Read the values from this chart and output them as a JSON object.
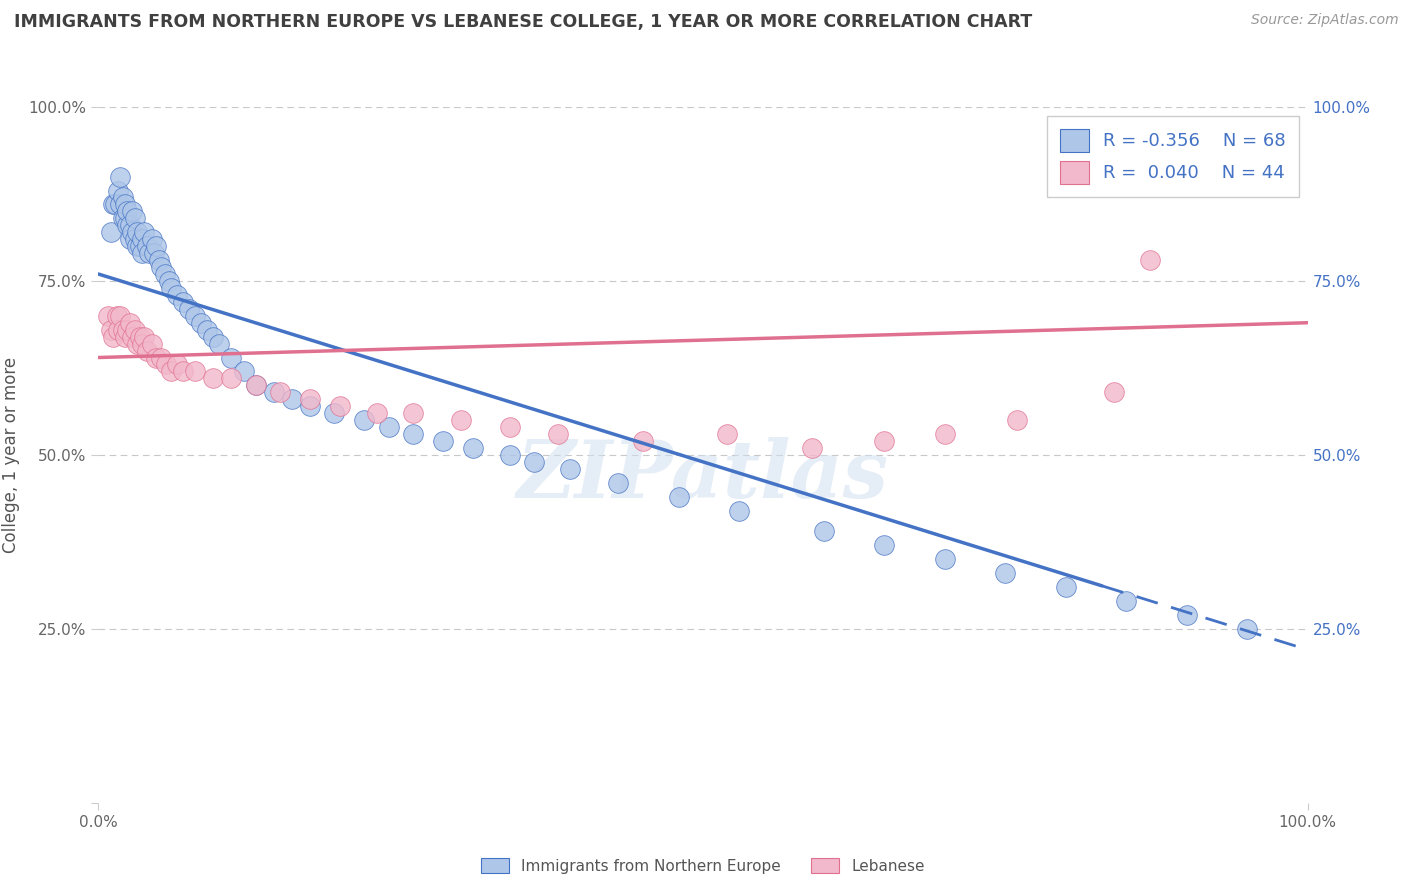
{
  "title": "IMMIGRANTS FROM NORTHERN EUROPE VS LEBANESE COLLEGE, 1 YEAR OR MORE CORRELATION CHART",
  "source_text": "Source: ZipAtlas.com",
  "ylabel": "College, 1 year or more",
  "watermark": "ZIPatlas",
  "legend": {
    "blue_R": -0.356,
    "blue_N": 68,
    "pink_R": 0.04,
    "pink_N": 44
  },
  "xlim": [
    0.0,
    1.0
  ],
  "ylim": [
    0.0,
    1.0
  ],
  "blue_color": "#aec6e8",
  "pink_color": "#f2b8cb",
  "blue_line_color": "#4472c4",
  "pink_line_color": "#e07090",
  "grid_color": "#c8c8c8",
  "background_color": "#ffffff",
  "title_color": "#404040",
  "right_axis_color": "#4472c4",
  "legend_label_blue": "Immigrants from Northern Europe",
  "legend_label_pink": "Lebanese",
  "blue_scatter_x": [
    0.01,
    0.012,
    0.014,
    0.016,
    0.018,
    0.018,
    0.02,
    0.02,
    0.022,
    0.022,
    0.024,
    0.024,
    0.026,
    0.026,
    0.028,
    0.028,
    0.03,
    0.03,
    0.032,
    0.032,
    0.034,
    0.036,
    0.036,
    0.038,
    0.04,
    0.042,
    0.044,
    0.046,
    0.048,
    0.05,
    0.052,
    0.055,
    0.058,
    0.06,
    0.065,
    0.07,
    0.075,
    0.08,
    0.085,
    0.09,
    0.095,
    0.1,
    0.11,
    0.12,
    0.13,
    0.145,
    0.16,
    0.175,
    0.195,
    0.22,
    0.24,
    0.26,
    0.285,
    0.31,
    0.34,
    0.36,
    0.39,
    0.43,
    0.48,
    0.53,
    0.6,
    0.65,
    0.7,
    0.75,
    0.8,
    0.85,
    0.9,
    0.95
  ],
  "blue_scatter_y": [
    0.82,
    0.86,
    0.86,
    0.88,
    0.86,
    0.9,
    0.84,
    0.87,
    0.84,
    0.86,
    0.83,
    0.85,
    0.83,
    0.81,
    0.82,
    0.85,
    0.81,
    0.84,
    0.8,
    0.82,
    0.8,
    0.81,
    0.79,
    0.82,
    0.8,
    0.79,
    0.81,
    0.79,
    0.8,
    0.78,
    0.77,
    0.76,
    0.75,
    0.74,
    0.73,
    0.72,
    0.71,
    0.7,
    0.69,
    0.68,
    0.67,
    0.66,
    0.64,
    0.62,
    0.6,
    0.59,
    0.58,
    0.57,
    0.56,
    0.55,
    0.54,
    0.53,
    0.52,
    0.51,
    0.5,
    0.49,
    0.48,
    0.46,
    0.44,
    0.42,
    0.39,
    0.37,
    0.35,
    0.33,
    0.31,
    0.29,
    0.27,
    0.25
  ],
  "pink_scatter_x": [
    0.008,
    0.01,
    0.012,
    0.015,
    0.016,
    0.018,
    0.02,
    0.022,
    0.024,
    0.026,
    0.028,
    0.03,
    0.032,
    0.034,
    0.036,
    0.038,
    0.04,
    0.044,
    0.048,
    0.052,
    0.056,
    0.06,
    0.065,
    0.07,
    0.08,
    0.095,
    0.11,
    0.13,
    0.15,
    0.175,
    0.2,
    0.23,
    0.26,
    0.3,
    0.34,
    0.38,
    0.45,
    0.52,
    0.59,
    0.65,
    0.7,
    0.76,
    0.84,
    0.87
  ],
  "pink_scatter_y": [
    0.7,
    0.68,
    0.67,
    0.7,
    0.68,
    0.7,
    0.68,
    0.67,
    0.68,
    0.69,
    0.67,
    0.68,
    0.66,
    0.67,
    0.66,
    0.67,
    0.65,
    0.66,
    0.64,
    0.64,
    0.63,
    0.62,
    0.63,
    0.62,
    0.62,
    0.61,
    0.61,
    0.6,
    0.59,
    0.58,
    0.57,
    0.56,
    0.56,
    0.55,
    0.54,
    0.53,
    0.52,
    0.53,
    0.51,
    0.52,
    0.53,
    0.55,
    0.59,
    0.78
  ],
  "blue_line_x0": 0.0,
  "blue_line_y0": 0.76,
  "blue_line_x1": 1.0,
  "blue_line_y1": 0.22,
  "blue_line_solid_end": 0.83,
  "pink_line_x0": 0.0,
  "pink_line_y0": 0.64,
  "pink_line_x1": 1.0,
  "pink_line_y1": 0.69,
  "yticks": [
    0.0,
    0.25,
    0.5,
    0.75,
    1.0
  ],
  "ytick_labels_left": [
    "",
    "25.0%",
    "50.0%",
    "75.0%",
    "100.0%"
  ],
  "ytick_labels_right": [
    "25.0%",
    "50.0%",
    "75.0%",
    "100.0%"
  ],
  "xtick_labels": [
    "0.0%",
    "100.0%"
  ]
}
